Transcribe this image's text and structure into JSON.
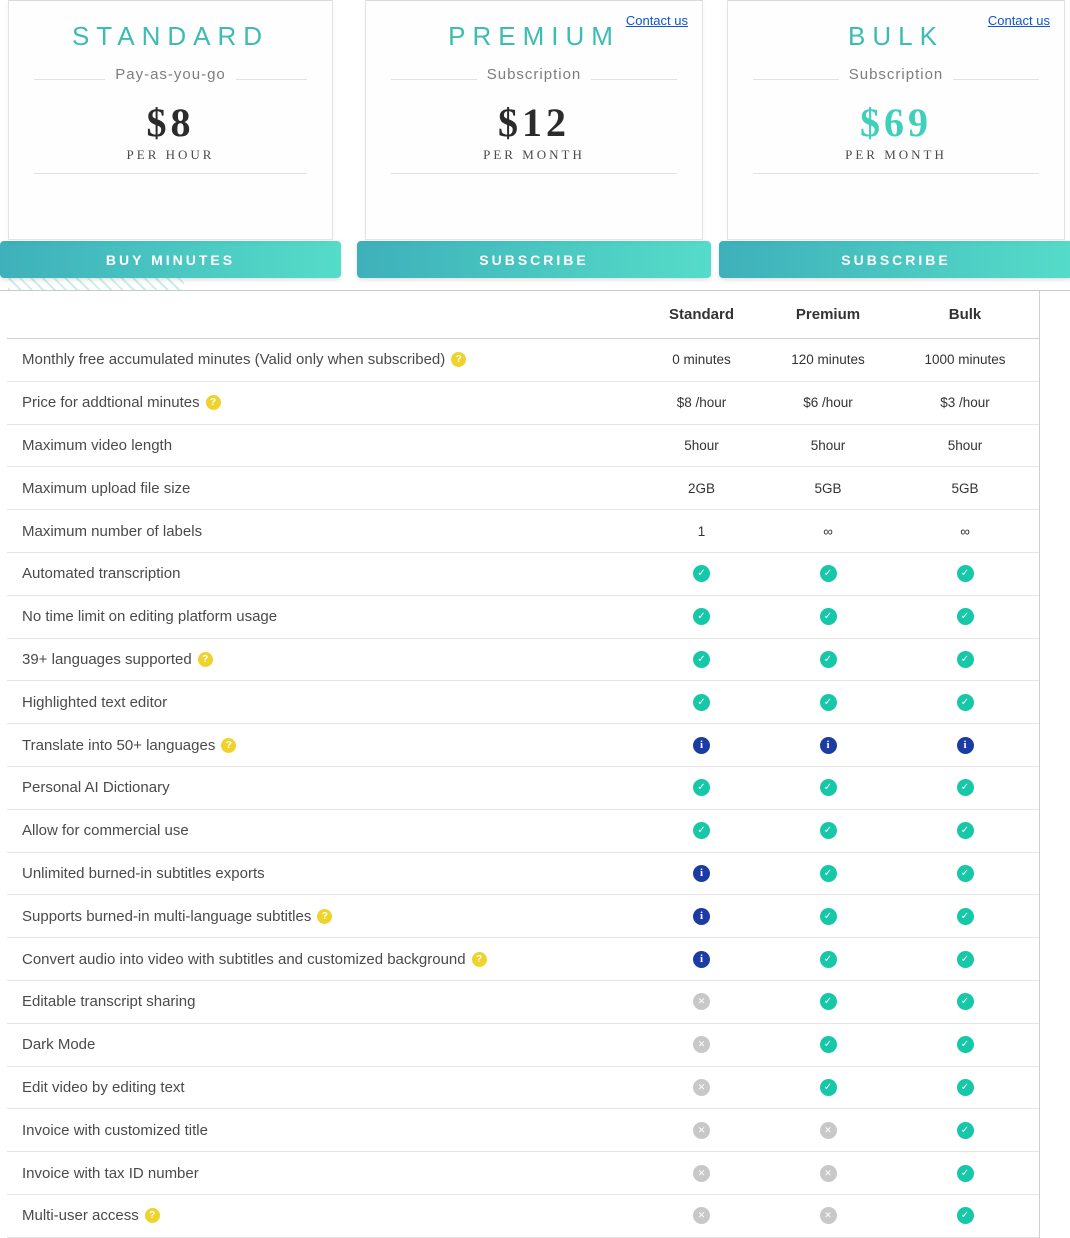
{
  "theme": {
    "teal_title": "#3cbcb2",
    "price_teal": "#3fd0bc",
    "button_gradient": [
      "#3eb0ba",
      "#55dcc8"
    ],
    "link_blue": "#1155cc",
    "check_color": "#16c8a8",
    "info_color": "#1c3ca3",
    "cross_color": "#c8c8c8",
    "help_color": "#efd32d"
  },
  "cards": [
    {
      "name": "STANDARD",
      "subtitle": "Pay-as-you-go",
      "price": "$8",
      "period": "PER HOUR",
      "button": "BUY MINUTES"
    },
    {
      "name": "PREMIUM",
      "subtitle": "Subscription",
      "price": "$12",
      "period": "PER MONTH",
      "button": "SUBSCRIBE",
      "contact": "Contact us"
    },
    {
      "name": "BULK",
      "subtitle": "Subscription",
      "price": "$69",
      "period": "PER MONTH",
      "button": "SUBSCRIBE",
      "contact": "Contact us"
    }
  ],
  "table": {
    "columns": [
      "Standard",
      "Premium",
      "Bulk"
    ],
    "rows": [
      {
        "label": "Monthly free accumulated minutes (Valid only when subscribed)",
        "help": true,
        "values": [
          "0 minutes",
          "120 minutes",
          "1000 minutes"
        ]
      },
      {
        "label": "Price for addtional minutes",
        "help": true,
        "values": [
          "$8 /hour",
          "$6 /hour",
          "$3 /hour"
        ]
      },
      {
        "label": "Maximum video length",
        "help": false,
        "values": [
          "5hour",
          "5hour",
          "5hour"
        ]
      },
      {
        "label": "Maximum upload file size",
        "help": false,
        "values": [
          "2GB",
          "5GB",
          "5GB"
        ]
      },
      {
        "label": "Maximum number of labels",
        "help": false,
        "values": [
          "1",
          "∞",
          "∞"
        ]
      },
      {
        "label": "Automated transcription",
        "help": false,
        "values": [
          "check",
          "check",
          "check"
        ]
      },
      {
        "label": "No time limit on editing platform usage",
        "help": false,
        "values": [
          "check",
          "check",
          "check"
        ]
      },
      {
        "label": "39+ languages supported",
        "help": true,
        "values": [
          "check",
          "check",
          "check"
        ]
      },
      {
        "label": "Highlighted text editor",
        "help": false,
        "values": [
          "check",
          "check",
          "check"
        ]
      },
      {
        "label": "Translate into 50+ languages",
        "help": true,
        "values": [
          "info",
          "info",
          "info"
        ]
      },
      {
        "label": "Personal AI Dictionary",
        "help": false,
        "values": [
          "check",
          "check",
          "check"
        ]
      },
      {
        "label": "Allow for commercial use",
        "help": false,
        "values": [
          "check",
          "check",
          "check"
        ]
      },
      {
        "label": "Unlimited burned-in subtitles exports",
        "help": false,
        "values": [
          "info",
          "check",
          "check"
        ]
      },
      {
        "label": "Supports burned-in multi-language subtitles",
        "help": true,
        "values": [
          "info",
          "check",
          "check"
        ]
      },
      {
        "label": "Convert audio into video with subtitles and customized background",
        "help": true,
        "values": [
          "info",
          "check",
          "check"
        ]
      },
      {
        "label": "Editable transcript sharing",
        "help": false,
        "values": [
          "cross",
          "check",
          "check"
        ]
      },
      {
        "label": "Dark Mode",
        "help": false,
        "values": [
          "cross",
          "check",
          "check"
        ]
      },
      {
        "label": "Edit video by editing text",
        "help": false,
        "values": [
          "cross",
          "check",
          "check"
        ]
      },
      {
        "label": "Invoice with customized title",
        "help": false,
        "values": [
          "cross",
          "cross",
          "check"
        ]
      },
      {
        "label": "Invoice with tax ID number",
        "help": false,
        "values": [
          "cross",
          "cross",
          "check"
        ]
      },
      {
        "label": "Multi-user access",
        "help": true,
        "values": [
          "cross",
          "cross",
          "check"
        ]
      }
    ]
  }
}
